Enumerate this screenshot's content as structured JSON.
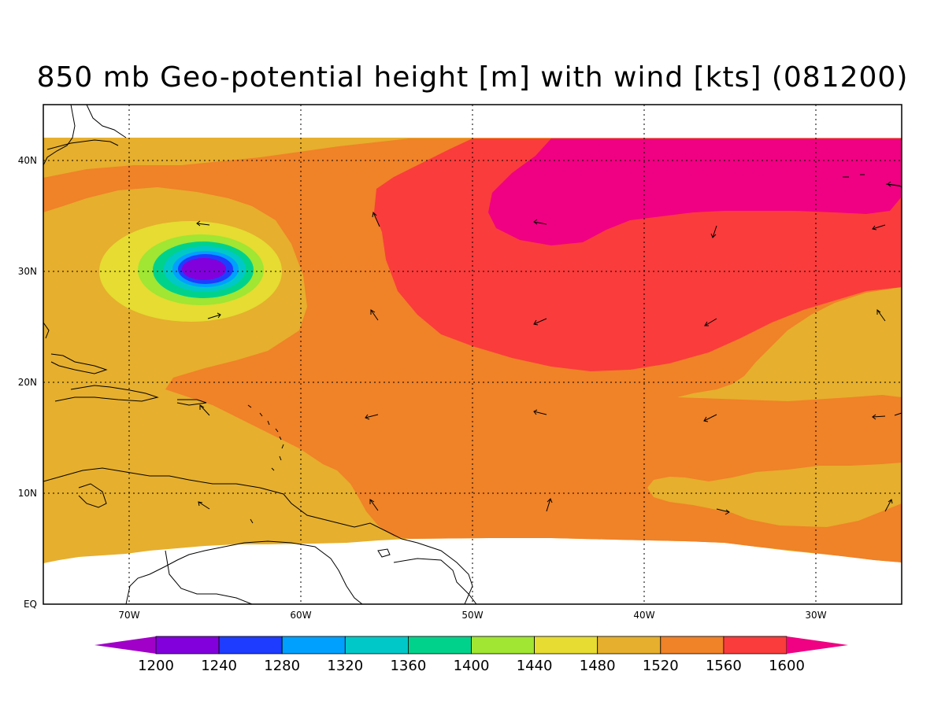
{
  "title": "850 mb Geo-potential height [m] with wind [kts] (081200)",
  "map": {
    "lon_ticks": [
      "70W",
      "60W",
      "50W",
      "40W",
      "30W"
    ],
    "lat_ticks": [
      "EQ",
      "10N",
      "20N",
      "30N",
      "40N"
    ],
    "grid": "dotted"
  },
  "colorbar": {
    "levels": [
      "1200",
      "1240",
      "1280",
      "1320",
      "1360",
      "1400",
      "1440",
      "1480",
      "1520",
      "1560",
      "1600"
    ],
    "colors": [
      "#a000c8",
      "#8200dc",
      "#1e3cff",
      "#00a0ff",
      "#00c8c8",
      "#00d28c",
      "#a0e632",
      "#e6dc32",
      "#e6af2d",
      "#f08228",
      "#fa3c3c",
      "#f00082"
    ]
  },
  "field_colors": {
    "c1480": "#e6dc32",
    "c1520": "#e6af2d",
    "c1560": "#f08228",
    "c1600": "#fa3c3c",
    "c1640": "#f00082",
    "land": "#ffffff",
    "coast": "#000000"
  }
}
